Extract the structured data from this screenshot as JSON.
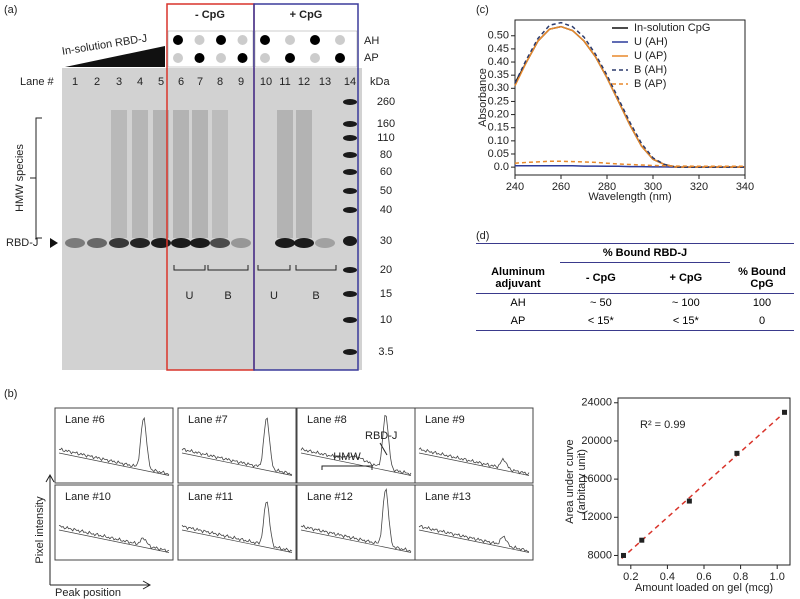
{
  "panel_labels": {
    "a": "(a)",
    "b": "(b)",
    "c": "(c)",
    "d": "(d)"
  },
  "gel": {
    "groups": [
      "- CpG",
      "+ CpG"
    ],
    "row_labels": [
      "AH",
      "AP"
    ],
    "insolution_label": "In-solution RBD-J",
    "lane_header": "Lane #",
    "lanes": [
      1,
      2,
      3,
      4,
      5,
      6,
      7,
      8,
      9,
      10,
      11,
      12,
      13,
      14
    ],
    "kda_header": "kDa",
    "kda": [
      260,
      160,
      110,
      80,
      60,
      50,
      40,
      30,
      20,
      15,
      10,
      3.5
    ],
    "hmw_label": "HMW species",
    "rbd_label": "RBD-J",
    "brackets": [
      "U",
      "B",
      "U",
      "B"
    ]
  },
  "densitometry": {
    "labels": [
      "Lane #6",
      "Lane #7",
      "Lane #8",
      "Lane #9",
      "Lane #10",
      "Lane #11",
      "Lane #12",
      "Lane #13"
    ],
    "hmw": "HMW",
    "rbd": "RBD-J",
    "y_label": "Pixel intensity",
    "x_label": "Peak position"
  },
  "chart_data": [
    {
      "type": "line",
      "x_label": "Wavelength (nm)",
      "y_label": "Absorbance",
      "x": [
        240,
        245,
        250,
        255,
        260,
        265,
        270,
        275,
        280,
        285,
        290,
        295,
        300,
        305,
        310,
        315,
        320,
        325,
        330,
        335,
        340
      ],
      "xlim": [
        240,
        340
      ],
      "xticks": [
        240,
        260,
        280,
        300,
        320,
        340
      ],
      "ylim": [
        -0.03,
        0.56
      ],
      "yticks": [
        {
          "value": 0,
          "label": "0.0"
        },
        0.05,
        {
          "value": 0.1,
          "label": "0.10"
        },
        0.15,
        {
          "value": 0.2,
          "label": "0.20"
        },
        0.25,
        {
          "value": 0.3,
          "label": "0.30"
        },
        0.35,
        {
          "value": 0.4,
          "label": "0.40"
        },
        0.45,
        {
          "value": 0.5,
          "label": "0.50"
        }
      ],
      "legend": "upper right",
      "series": [
        {
          "name": "In-solution CpG",
          "color": "#111111",
          "dash": false,
          "values": [
            0.32,
            0.4,
            0.48,
            0.525,
            0.535,
            0.52,
            0.48,
            0.42,
            0.34,
            0.25,
            0.16,
            0.08,
            0.03,
            0.01,
            0,
            0,
            0,
            0,
            0,
            0,
            0
          ]
        },
        {
          "name": "U (AH)",
          "color": "#2b3a9b",
          "dash": false,
          "values": [
            0.005,
            0.005,
            0.005,
            0.005,
            0.005,
            0.005,
            0.004,
            0.004,
            0.003,
            0.003,
            0.002,
            0.002,
            0.001,
            0.001,
            0,
            0,
            0,
            0,
            0,
            0,
            0
          ]
        },
        {
          "name": "U (AP)",
          "color": "#e8892b",
          "dash": false,
          "values": [
            0.31,
            0.4,
            0.48,
            0.525,
            0.535,
            0.52,
            0.48,
            0.42,
            0.34,
            0.25,
            0.16,
            0.08,
            0.03,
            0.01,
            0,
            0,
            0,
            0,
            0,
            0,
            0
          ]
        },
        {
          "name": "B (AH)",
          "color": "#2b3a6b",
          "dash": true,
          "values": [
            0.32,
            0.41,
            0.49,
            0.54,
            0.55,
            0.535,
            0.495,
            0.43,
            0.35,
            0.26,
            0.17,
            0.09,
            0.035,
            0.01,
            0,
            0,
            0,
            0,
            0,
            0,
            0
          ]
        },
        {
          "name": "B (AP)",
          "color": "#e8892b",
          "dash": true,
          "values": [
            0.015,
            0.018,
            0.02,
            0.022,
            0.022,
            0.021,
            0.02,
            0.018,
            0.015,
            0.012,
            0.01,
            0.008,
            0.006,
            0.005,
            0.004,
            0.004,
            0.003,
            0.003,
            0.003,
            0.003,
            0.003
          ]
        }
      ]
    },
    {
      "type": "scatter",
      "x_label": "Amount loaded on gel (mcg)",
      "y_label": [
        "Area under curve",
        "(arbitary unit)"
      ],
      "annotation": "R² = 0.99",
      "x": [
        0.16,
        0.26,
        0.52,
        0.78,
        1.04
      ],
      "values": [
        8000,
        9600,
        13700,
        18700,
        23000
      ],
      "color": "#222222",
      "trendline": {
        "color": "#d9342b",
        "dash": true
      },
      "xlim": [
        0.13,
        1.07
      ],
      "xticks": [
        0.2,
        0.4,
        0.6,
        0.8,
        {
          "value": 1,
          "label": "1.0"
        }
      ],
      "ylim": [
        7000,
        24500
      ],
      "yticks": [
        8000,
        12000,
        16000,
        20000,
        24000
      ]
    }
  ],
  "table": {
    "group_header": "% Bound RBD-J",
    "columns": [
      "Aluminum adjuvant",
      "- CpG",
      "+ CpG",
      "% Bound CpG"
    ],
    "rows": [
      [
        "AH",
        "~ 50",
        "~ 100",
        "100"
      ],
      [
        "AP",
        "< 15*",
        "< 15*",
        "0"
      ]
    ]
  }
}
